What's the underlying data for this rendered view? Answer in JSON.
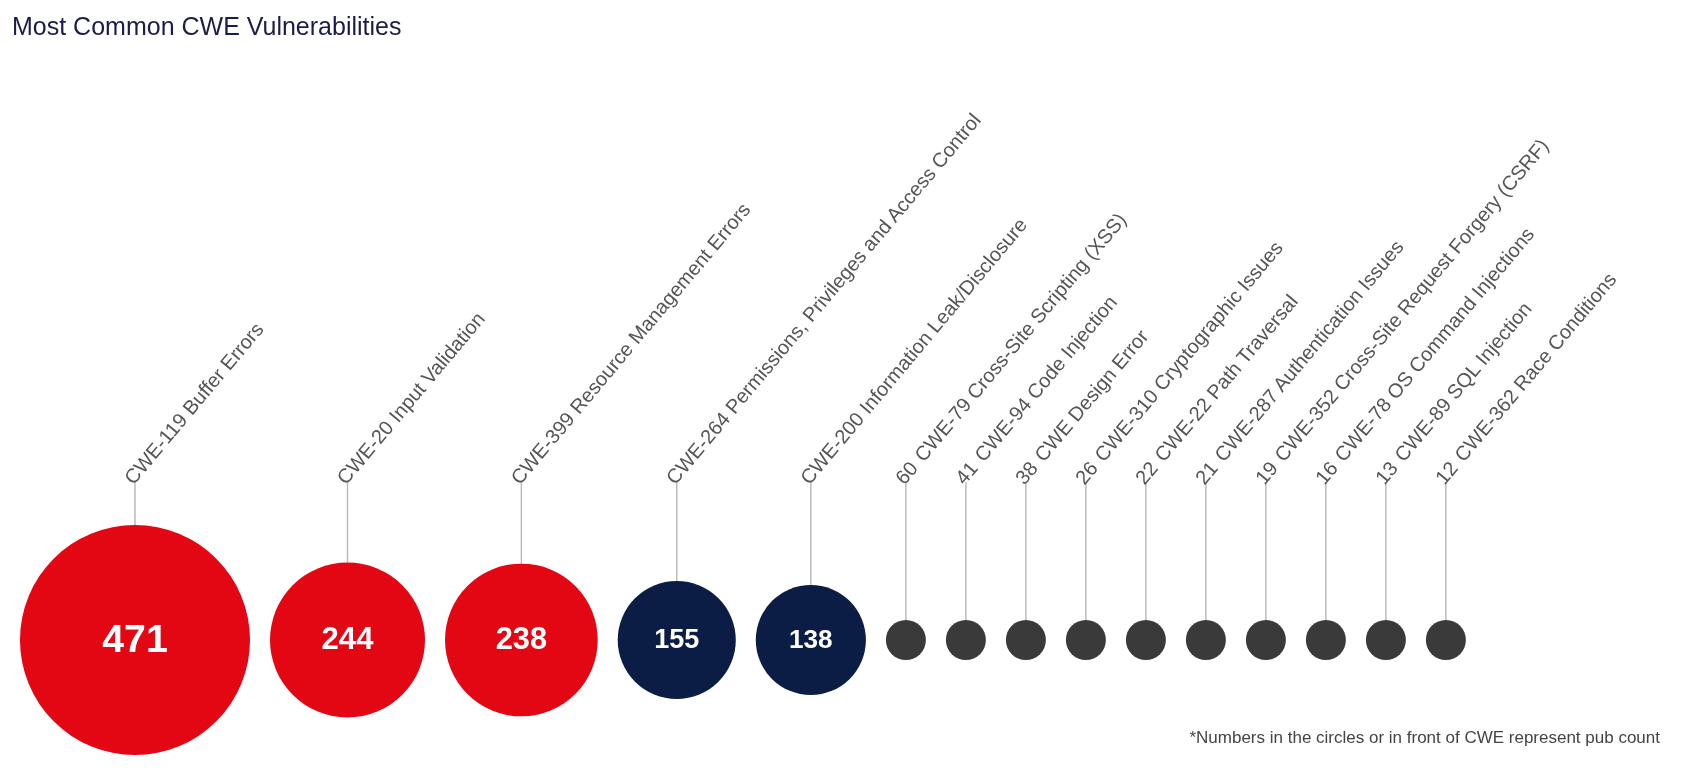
{
  "chart_data": {
    "type": "other",
    "title": "Most Common CWE Vulnerabilities",
    "categories": [
      "CWE-119 Buffer Errors",
      "CWE-20 Input Validation",
      "CWE-399 Resource Management Errors",
      "CWE-264 Permissions, Privileges and Access Control",
      "CWE-200 Information Leak/Disclosure",
      "CWE-79 Cross-Site Scripting (XSS)",
      "CWE-94 Code Injection",
      "CWE Design Error",
      "CWE-310 Cryptographic Issues",
      "CWE-22 Path Traversal",
      "CWE-287 Authentication Issues",
      "CWE-352 Cross-Site Request Forgery (CSRF)",
      "CWE-78 OS Command Injections",
      "CWE-89 SQL Injection",
      "CWE-362 Race Conditions"
    ],
    "values": [
      471,
      244,
      238,
      155,
      138,
      60,
      41,
      38,
      26,
      22,
      21,
      19,
      16,
      13,
      12
    ],
    "colors": [
      "#e30613",
      "#e30613",
      "#e30613",
      "#0b1d44",
      "#0b1d44",
      "#3a3a3a",
      "#3a3a3a",
      "#3a3a3a",
      "#3a3a3a",
      "#3a3a3a",
      "#3a3a3a",
      "#3a3a3a",
      "#3a3a3a",
      "#3a3a3a",
      "#3a3a3a"
    ],
    "data_labels": true,
    "annotations": [
      "*Numbers in the circles or in front of CWE represent pub count"
    ]
  }
}
